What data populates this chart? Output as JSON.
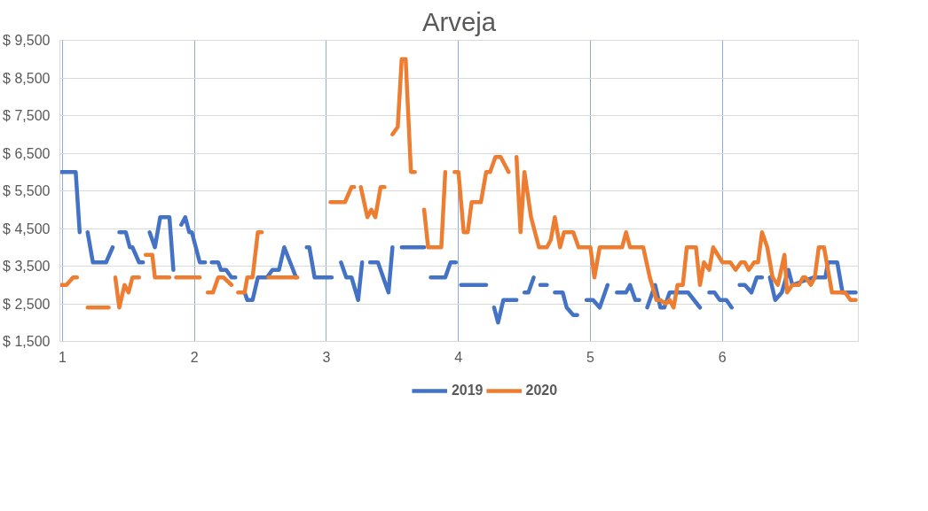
{
  "chart_data": {
    "type": "line",
    "title": "Arveja",
    "xlim": [
      0.98,
      7.03
    ],
    "xticks": [
      1,
      2,
      3,
      4,
      5,
      6
    ],
    "ylim": [
      1500,
      9500
    ],
    "yticks": [
      {
        "value": 1500,
        "label": "$ 1,500"
      },
      {
        "value": 2500,
        "label": "$ 2,500"
      },
      {
        "value": 3500,
        "label": "$ 3,500"
      },
      {
        "value": 4500,
        "label": "$ 4,500"
      },
      {
        "value": 5500,
        "label": "$ 5,500"
      },
      {
        "value": 6500,
        "label": "$ 6,500"
      },
      {
        "value": 7500,
        "label": "$ 7,500"
      },
      {
        "value": 8500,
        "label": "$ 8,500"
      },
      {
        "value": 9500,
        "label": "$ 9,500"
      }
    ],
    "grid": true,
    "legend": "bottom",
    "marker": "none",
    "line_style": "solid",
    "series": [
      {
        "name": "2019",
        "color": "#4472c4",
        "x": [
          0.99,
          1.1,
          1.13,
          1.16,
          1.19,
          1.23,
          1.33,
          1.38,
          1.4,
          1.43,
          1.48,
          1.51,
          1.53,
          1.58,
          1.61,
          1.63,
          1.66,
          1.7,
          1.74,
          1.81,
          1.84,
          1.87,
          1.9,
          1.93,
          1.96,
          1.98,
          2.04,
          2.08,
          2.1,
          2.13,
          2.18,
          2.2,
          2.24,
          2.28,
          2.31,
          2.34,
          2.38,
          2.4,
          2.44,
          2.48,
          2.55,
          2.59,
          2.64,
          2.68,
          2.77,
          2.81,
          2.85,
          2.87,
          2.91,
          2.99,
          3.04,
          3.07,
          3.11,
          3.15,
          3.19,
          3.24,
          3.27,
          3.3,
          3.33,
          3.39,
          3.47,
          3.5,
          3.53,
          3.57,
          3.74,
          3.76,
          3.79,
          3.9,
          3.94,
          3.98,
          4.0,
          4.02,
          4.21,
          4.24,
          4.27,
          4.3,
          4.34,
          4.44,
          4.47,
          4.5,
          4.53,
          4.57,
          4.59,
          4.62,
          4.67,
          4.7,
          4.73,
          4.79,
          4.82,
          4.87,
          4.9,
          4.93,
          4.97,
          5.02,
          5.07,
          5.13,
          5.17,
          5.2,
          5.27,
          5.3,
          5.34,
          5.37,
          5.4,
          5.43,
          5.49,
          5.53,
          5.56,
          5.6,
          5.68,
          5.74,
          5.83,
          5.87,
          5.9,
          5.94,
          5.98,
          6.03,
          6.07,
          6.1,
          6.13,
          6.17,
          6.22,
          6.26,
          6.3,
          6.33,
          6.36,
          6.4,
          6.45,
          6.5,
          6.53,
          6.69,
          6.78,
          6.8,
          6.87,
          6.91,
          7.01
        ],
        "values": [
          6000,
          6000,
          4400,
          null,
          4400,
          3600,
          3600,
          4000,
          null,
          4400,
          4400,
          4000,
          4000,
          3600,
          3600,
          null,
          4400,
          4000,
          4800,
          4800,
          3400,
          null,
          4600,
          4800,
          4400,
          4400,
          3600,
          3600,
          null,
          3600,
          3600,
          3400,
          3400,
          3200,
          3200,
          null,
          2800,
          2600,
          2600,
          3200,
          3200,
          3400,
          3400,
          4000,
          3200,
          null,
          4000,
          4000,
          3200,
          3200,
          3200,
          null,
          3600,
          3200,
          3200,
          2600,
          3600,
          null,
          3600,
          3600,
          2800,
          4000,
          null,
          4000,
          4000,
          null,
          3200,
          3200,
          3600,
          3600,
          null,
          3000,
          3000,
          null,
          2400,
          2000,
          2600,
          2600,
          null,
          2800,
          2800,
          3200,
          null,
          3000,
          3000,
          null,
          2800,
          2800,
          2400,
          2200,
          2200,
          null,
          2600,
          2600,
          2400,
          3000,
          null,
          2800,
          2800,
          3000,
          2600,
          2600,
          null,
          2400,
          3000,
          2400,
          2400,
          2800,
          2800,
          2800,
          2400,
          null,
          2800,
          2800,
          2600,
          2600,
          2400,
          null,
          3000,
          3000,
          2800,
          3200,
          3200,
          null,
          3200,
          2600,
          2800,
          3400,
          3000,
          3200,
          3200,
          3600,
          3600,
          2800,
          2800
        ]
      },
      {
        "name": "2020",
        "color": "#ed7d31",
        "x": [
          0.99,
          1.03,
          1.08,
          1.11,
          1.13,
          1.19,
          1.22,
          1.27,
          1.3,
          1.33,
          1.35,
          1.37,
          1.4,
          1.43,
          1.47,
          1.5,
          1.53,
          1.58,
          1.61,
          1.63,
          1.68,
          1.7,
          1.81,
          1.83,
          1.86,
          2.04,
          2.07,
          2.1,
          2.14,
          2.18,
          2.22,
          2.28,
          2.3,
          2.33,
          2.38,
          2.4,
          2.44,
          2.48,
          2.51,
          2.53,
          2.56,
          2.78,
          2.9,
          3.03,
          3.14,
          3.19,
          3.21,
          3.23,
          3.26,
          3.31,
          3.34,
          3.37,
          3.41,
          3.44,
          3.47,
          3.5,
          3.54,
          3.57,
          3.6,
          3.64,
          3.67,
          3.7,
          3.74,
          3.77,
          3.87,
          3.9,
          3.92,
          3.97,
          4.0,
          4.04,
          4.07,
          4.1,
          4.17,
          4.21,
          4.24,
          4.28,
          4.32,
          4.38,
          4.4,
          4.44,
          4.47,
          4.5,
          4.55,
          4.61,
          4.67,
          4.7,
          4.73,
          4.77,
          4.8,
          4.87,
          4.91,
          5.0,
          5.03,
          5.07,
          5.24,
          5.27,
          5.3,
          5.4,
          5.45,
          5.5,
          5.53,
          5.57,
          5.6,
          5.63,
          5.66,
          5.7,
          5.73,
          5.8,
          5.83,
          5.86,
          5.9,
          5.93,
          6.0,
          6.06,
          6.1,
          6.14,
          6.17,
          6.2,
          6.24,
          6.27,
          6.3,
          6.34,
          6.38,
          6.42,
          6.47,
          6.49,
          6.53,
          6.58,
          6.61,
          6.63,
          6.67,
          6.7,
          6.73,
          6.77,
          6.83,
          6.93,
          6.97,
          7.01
        ],
        "values": [
          3000,
          3000,
          3200,
          3200,
          null,
          2400,
          2400,
          2400,
          2400,
          2400,
          2400,
          null,
          3200,
          2400,
          3000,
          2800,
          3200,
          3200,
          null,
          3800,
          3800,
          3200,
          3200,
          null,
          3200,
          3200,
          null,
          2800,
          2800,
          3200,
          3200,
          3000,
          null,
          2800,
          2800,
          3200,
          3200,
          4400,
          4400,
          null,
          3200,
          3200,
          null,
          5200,
          5200,
          5600,
          5600,
          null,
          5600,
          4800,
          5000,
          4800,
          5600,
          5600,
          null,
          7000,
          7200,
          9000,
          9000,
          6000,
          6000,
          null,
          5000,
          4000,
          4000,
          6000,
          null,
          6000,
          6000,
          4400,
          4400,
          5200,
          5200,
          6000,
          6000,
          6400,
          6400,
          6000,
          null,
          6400,
          4400,
          6000,
          4800,
          4000,
          4000,
          4200,
          4800,
          4000,
          4400,
          4400,
          4000,
          4000,
          3200,
          4000,
          4000,
          4400,
          4000,
          4000,
          3200,
          2600,
          2600,
          2500,
          2600,
          2400,
          3000,
          3000,
          4000,
          4000,
          3000,
          3600,
          3400,
          4000,
          3600,
          3600,
          3400,
          3600,
          3600,
          3400,
          3600,
          3600,
          4400,
          4000,
          3200,
          3000,
          3800,
          2800,
          3000,
          3000,
          3200,
          3200,
          3000,
          3200,
          4000,
          4000,
          2800,
          2800,
          2600,
          2600
        ]
      }
    ]
  }
}
